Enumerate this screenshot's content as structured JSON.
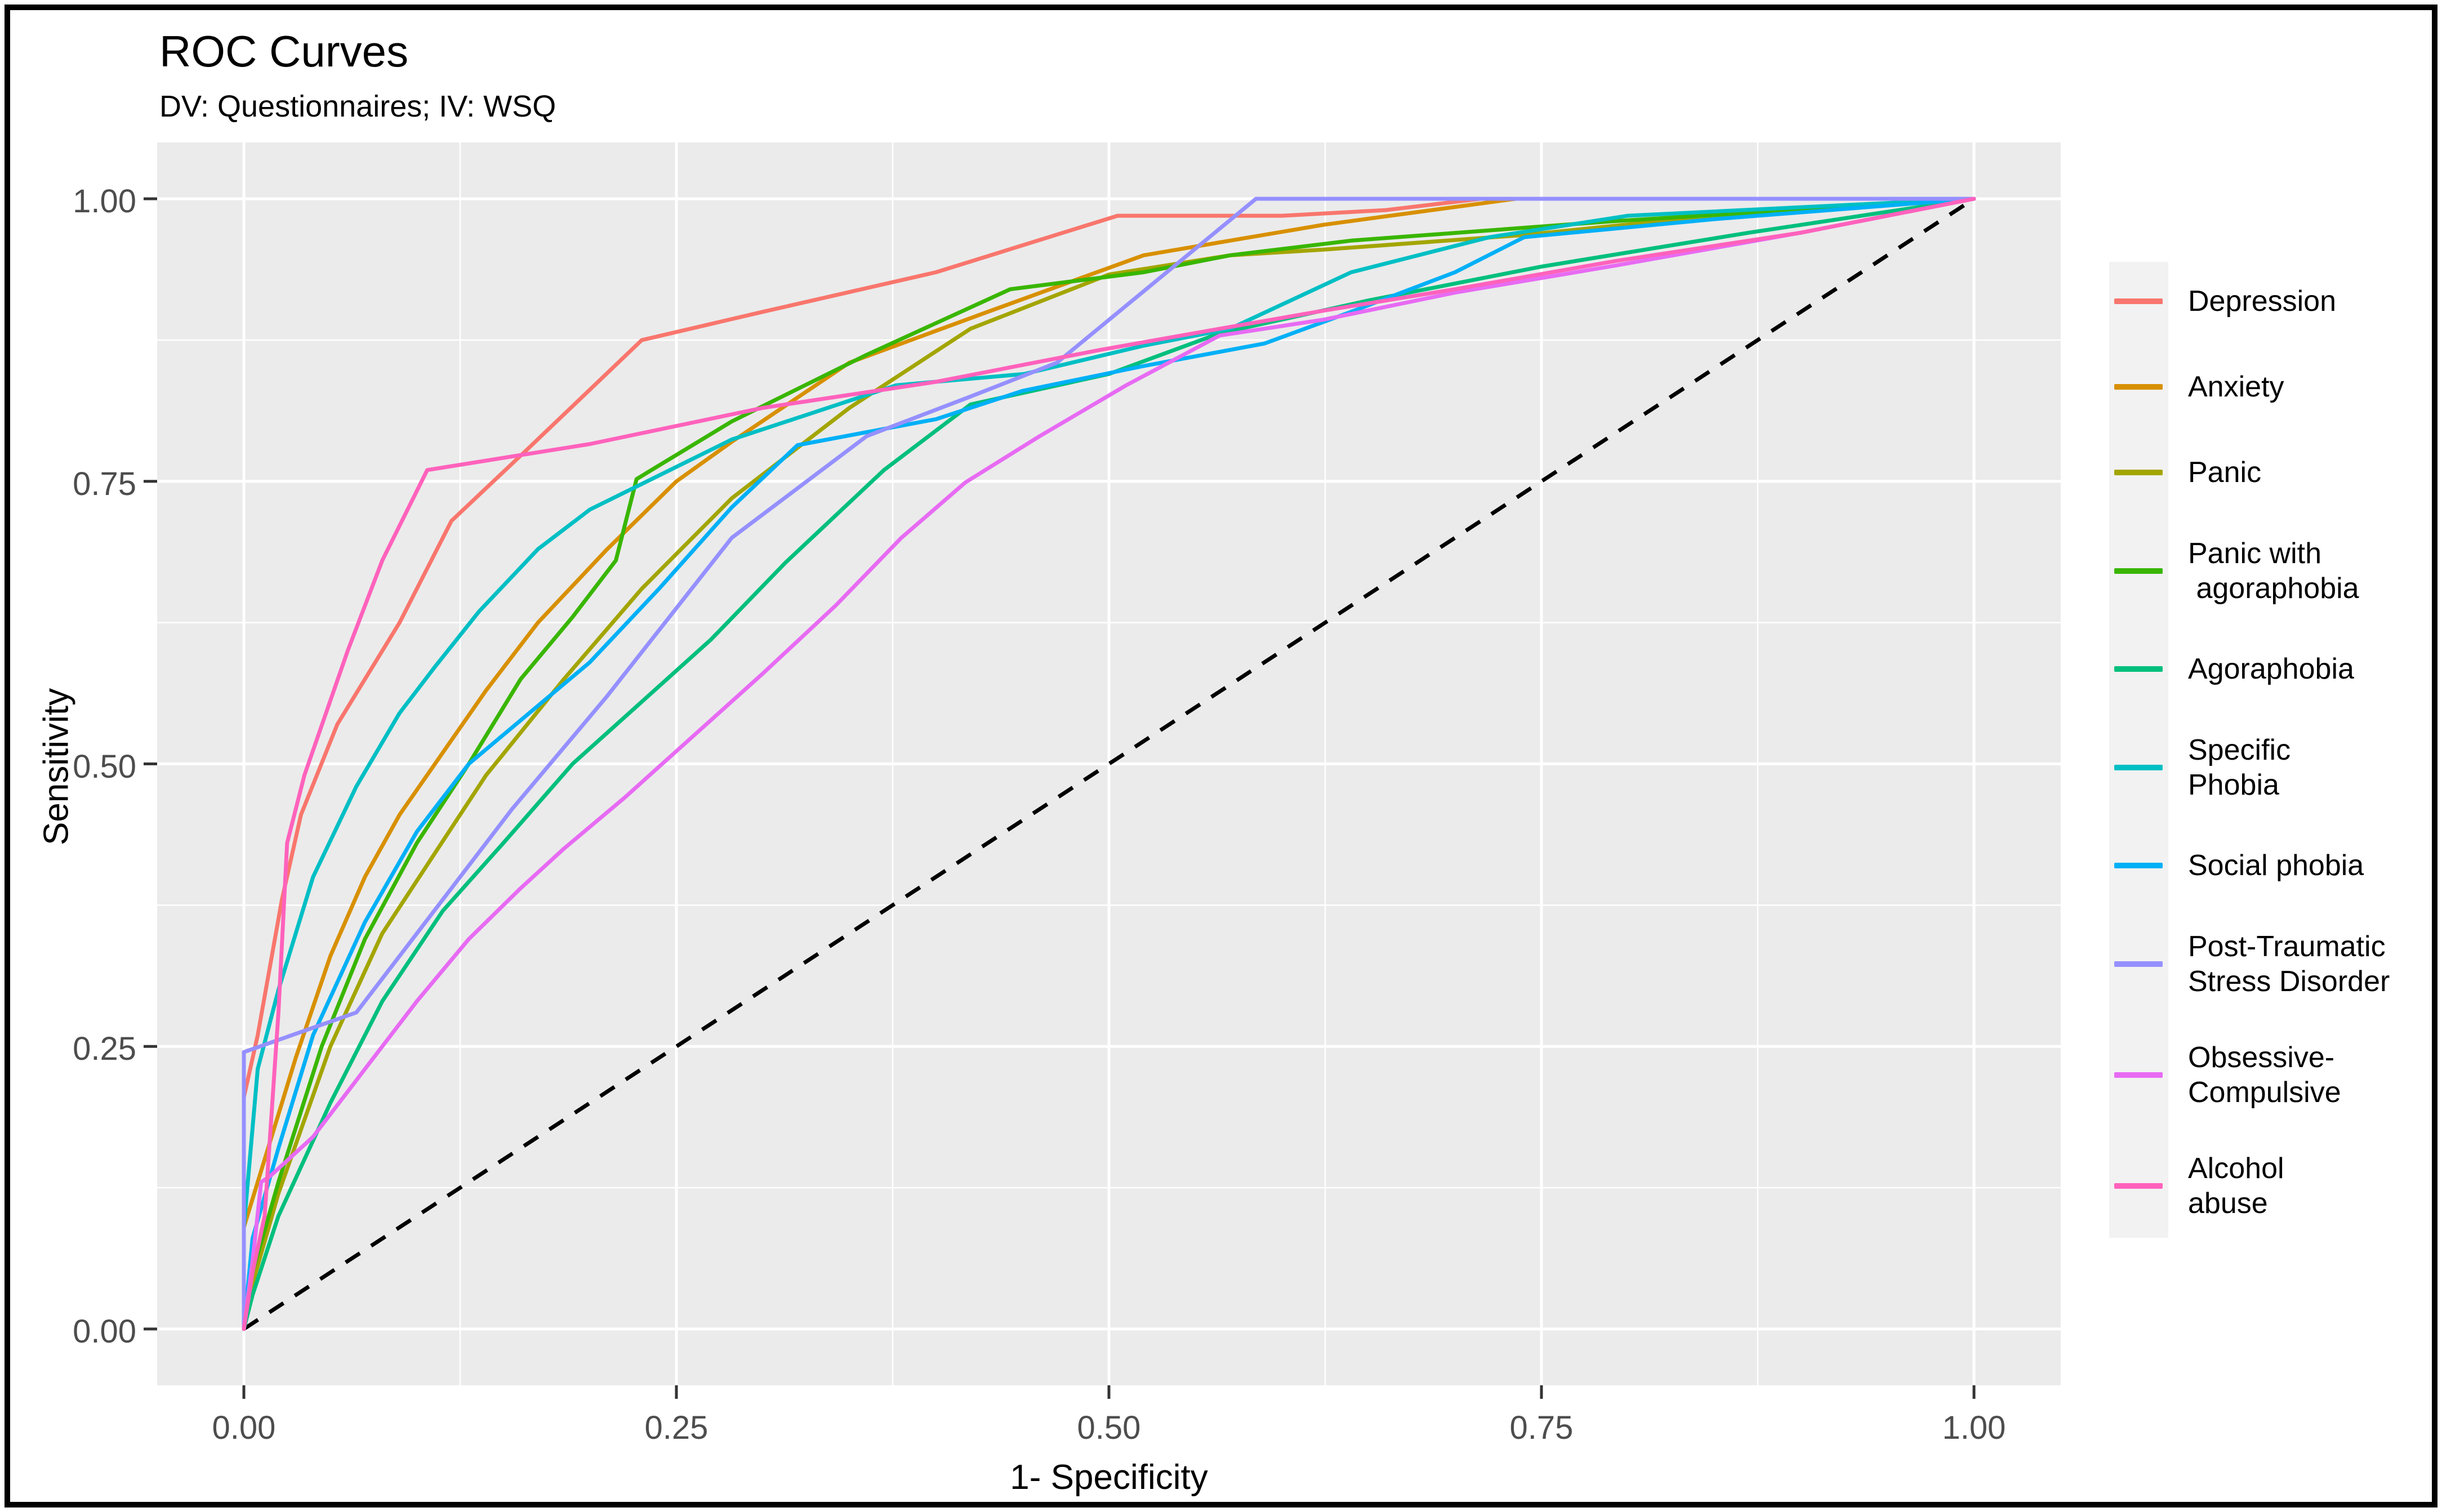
{
  "chart_data": {
    "type": "line",
    "title": "ROC Curves",
    "subtitle": "DV: Questionnaires; IV: WSQ",
    "xlabel": "1- Specificity",
    "ylabel": "Sensitivity",
    "xlim": [
      0,
      1
    ],
    "ylim": [
      0,
      1
    ],
    "grid": "on",
    "legend_position": "right",
    "panel_bg": "#EBEBEB",
    "grid_color": "#FFFFFF",
    "tick_text_color": "#4d4d4d",
    "tick_mark_color": "#333333",
    "legend_key_bg": "#F2F2F2",
    "x_ticks": {
      "values": [
        0,
        0.25,
        0.5,
        0.75,
        1.0
      ],
      "labels": [
        "0.00",
        "0.25",
        "0.50",
        "0.75",
        "1.00"
      ]
    },
    "y_ticks": {
      "values": [
        0,
        0.25,
        0.5,
        0.75,
        1.0
      ],
      "labels": [
        "0.00",
        "0.25",
        "0.50",
        "0.75",
        "1.00"
      ]
    },
    "x_minor_ticks": [
      0.125,
      0.375,
      0.625,
      0.875
    ],
    "y_minor_ticks": [
      0.125,
      0.375,
      0.625,
      0.875
    ],
    "reference_line": {
      "from": [
        0,
        0
      ],
      "to": [
        1,
        1
      ],
      "style": "dashed",
      "color": "#000000"
    },
    "series": [
      {
        "name": "Depression",
        "color": "#F8766D",
        "points": [
          [
            0,
            0
          ],
          [
            0,
            0.205
          ],
          [
            0.008,
            0.26
          ],
          [
            0.022,
            0.38
          ],
          [
            0.033,
            0.455
          ],
          [
            0.054,
            0.535
          ],
          [
            0.07,
            0.575
          ],
          [
            0.09,
            0.625
          ],
          [
            0.12,
            0.715
          ],
          [
            0.165,
            0.78
          ],
          [
            0.23,
            0.875
          ],
          [
            0.3,
            0.9
          ],
          [
            0.4,
            0.935
          ],
          [
            0.505,
            0.985
          ],
          [
            0.6,
            0.985
          ],
          [
            0.66,
            0.99
          ],
          [
            0.715,
            1
          ],
          [
            1,
            1
          ]
        ]
      },
      {
        "name": "Anxiety",
        "color": "#D89000",
        "points": [
          [
            0,
            0
          ],
          [
            0,
            0.09
          ],
          [
            0.015,
            0.165
          ],
          [
            0.03,
            0.24
          ],
          [
            0.05,
            0.33
          ],
          [
            0.07,
            0.4
          ],
          [
            0.09,
            0.455
          ],
          [
            0.115,
            0.51
          ],
          [
            0.14,
            0.565
          ],
          [
            0.17,
            0.625
          ],
          [
            0.21,
            0.69
          ],
          [
            0.25,
            0.75
          ],
          [
            0.282,
            0.785
          ],
          [
            0.35,
            0.855
          ],
          [
            0.43,
            0.9
          ],
          [
            0.52,
            0.95
          ],
          [
            0.624,
            0.977
          ],
          [
            0.735,
            1
          ],
          [
            1,
            1
          ]
        ]
      },
      {
        "name": "Panic",
        "color": "#A3A500",
        "points": [
          [
            0,
            0
          ],
          [
            0.005,
            0.04
          ],
          [
            0.02,
            0.12
          ],
          [
            0.05,
            0.25
          ],
          [
            0.08,
            0.35
          ],
          [
            0.11,
            0.42
          ],
          [
            0.14,
            0.49
          ],
          [
            0.185,
            0.575
          ],
          [
            0.23,
            0.655
          ],
          [
            0.282,
            0.735
          ],
          [
            0.35,
            0.815
          ],
          [
            0.42,
            0.885
          ],
          [
            0.5,
            0.933
          ],
          [
            0.57,
            0.95
          ],
          [
            0.624,
            0.955
          ],
          [
            0.74,
            0.968
          ],
          [
            0.85,
            0.985
          ],
          [
            1,
            1
          ]
        ]
      },
      {
        "name": "Panic with\n agoraphobia",
        "color": "#39B600",
        "points": [
          [
            0,
            0
          ],
          [
            0.005,
            0.05
          ],
          [
            0.02,
            0.13
          ],
          [
            0.045,
            0.25
          ],
          [
            0.07,
            0.345
          ],
          [
            0.1,
            0.43
          ],
          [
            0.13,
            0.5
          ],
          [
            0.16,
            0.575
          ],
          [
            0.19,
            0.63
          ],
          [
            0.215,
            0.68
          ],
          [
            0.227,
            0.752
          ],
          [
            0.282,
            0.803
          ],
          [
            0.36,
            0.862
          ],
          [
            0.443,
            0.92
          ],
          [
            0.52,
            0.935
          ],
          [
            0.57,
            0.95
          ],
          [
            0.64,
            0.963
          ],
          [
            0.79,
            0.98
          ],
          [
            1,
            1
          ]
        ]
      },
      {
        "name": "Agoraphobia",
        "color": "#00BF7D",
        "points": [
          [
            0,
            0
          ],
          [
            0.005,
            0.03
          ],
          [
            0.02,
            0.1
          ],
          [
            0.05,
            0.2
          ],
          [
            0.08,
            0.29
          ],
          [
            0.115,
            0.37
          ],
          [
            0.15,
            0.43
          ],
          [
            0.19,
            0.5
          ],
          [
            0.23,
            0.555
          ],
          [
            0.27,
            0.61
          ],
          [
            0.313,
            0.678
          ],
          [
            0.37,
            0.76
          ],
          [
            0.42,
            0.818
          ],
          [
            0.5,
            0.845
          ],
          [
            0.564,
            0.881
          ],
          [
            0.65,
            0.91
          ],
          [
            0.75,
            0.94
          ],
          [
            0.87,
            0.97
          ],
          [
            1,
            1
          ]
        ]
      },
      {
        "name": "Specific\nPhobia",
        "color": "#00BFC4",
        "points": [
          [
            0,
            0
          ],
          [
            0,
            0.09
          ],
          [
            0.008,
            0.23
          ],
          [
            0.02,
            0.3
          ],
          [
            0.04,
            0.4
          ],
          [
            0.065,
            0.48
          ],
          [
            0.09,
            0.545
          ],
          [
            0.11,
            0.585
          ],
          [
            0.136,
            0.635
          ],
          [
            0.17,
            0.69
          ],
          [
            0.2,
            0.725
          ],
          [
            0.282,
            0.787
          ],
          [
            0.377,
            0.835
          ],
          [
            0.451,
            0.845
          ],
          [
            0.52,
            0.87
          ],
          [
            0.57,
            0.885
          ],
          [
            0.64,
            0.935
          ],
          [
            0.72,
            0.966
          ],
          [
            0.8,
            0.985
          ],
          [
            1,
            1
          ]
        ]
      },
      {
        "name": "Social phobia",
        "color": "#00B0F6",
        "points": [
          [
            0,
            0
          ],
          [
            0.005,
            0.08
          ],
          [
            0.02,
            0.16
          ],
          [
            0.04,
            0.26
          ],
          [
            0.07,
            0.36
          ],
          [
            0.1,
            0.44
          ],
          [
            0.13,
            0.5
          ],
          [
            0.165,
            0.545
          ],
          [
            0.2,
            0.59
          ],
          [
            0.24,
            0.655
          ],
          [
            0.282,
            0.727
          ],
          [
            0.32,
            0.782
          ],
          [
            0.4,
            0.805
          ],
          [
            0.45,
            0.83
          ],
          [
            0.52,
            0.852
          ],
          [
            0.59,
            0.872
          ],
          [
            0.64,
            0.9
          ],
          [
            0.7,
            0.935
          ],
          [
            0.74,
            0.966
          ],
          [
            0.85,
            0.982
          ],
          [
            1,
            1
          ]
        ]
      },
      {
        "name": "Post-Traumatic\nStress Disorder",
        "color": "#9590FF",
        "points": [
          [
            0,
            0
          ],
          [
            0,
            0.245
          ],
          [
            0.065,
            0.28
          ],
          [
            0.1,
            0.35
          ],
          [
            0.155,
            0.46
          ],
          [
            0.21,
            0.56
          ],
          [
            0.282,
            0.7
          ],
          [
            0.36,
            0.79
          ],
          [
            0.42,
            0.825
          ],
          [
            0.47,
            0.855
          ],
          [
            0.585,
            1
          ],
          [
            1,
            1
          ]
        ]
      },
      {
        "name": "Obsessive-\nCompulsive",
        "color": "#E76BF3",
        "points": [
          [
            0,
            0
          ],
          [
            0.005,
            0.06
          ],
          [
            0.01,
            0.13
          ],
          [
            0.015,
            0.135
          ],
          [
            0.04,
            0.17
          ],
          [
            0.07,
            0.23
          ],
          [
            0.1,
            0.29
          ],
          [
            0.13,
            0.345
          ],
          [
            0.16,
            0.39
          ],
          [
            0.185,
            0.425
          ],
          [
            0.22,
            0.47
          ],
          [
            0.26,
            0.525
          ],
          [
            0.3,
            0.58
          ],
          [
            0.342,
            0.64
          ],
          [
            0.38,
            0.7
          ],
          [
            0.417,
            0.749
          ],
          [
            0.46,
            0.79
          ],
          [
            0.51,
            0.835
          ],
          [
            0.564,
            0.879
          ],
          [
            0.624,
            0.893
          ],
          [
            0.7,
            0.917
          ],
          [
            0.793,
            0.941
          ],
          [
            0.9,
            0.97
          ],
          [
            1,
            1
          ]
        ]
      },
      {
        "name": "Alcohol\nabuse",
        "color": "#FF62BC",
        "points": [
          [
            0,
            0
          ],
          [
            0.005,
            0.05
          ],
          [
            0.012,
            0.1
          ],
          [
            0.02,
            0.28
          ],
          [
            0.025,
            0.43
          ],
          [
            0.035,
            0.49
          ],
          [
            0.06,
            0.6
          ],
          [
            0.08,
            0.68
          ],
          [
            0.106,
            0.76
          ],
          [
            0.2,
            0.783
          ],
          [
            0.3,
            0.815
          ],
          [
            0.4,
            0.838
          ],
          [
            0.494,
            0.866
          ],
          [
            0.564,
            0.885
          ],
          [
            0.624,
            0.901
          ],
          [
            0.7,
            0.92
          ],
          [
            0.793,
            0.945
          ],
          [
            0.9,
            0.97
          ],
          [
            1,
            1
          ]
        ]
      }
    ]
  }
}
